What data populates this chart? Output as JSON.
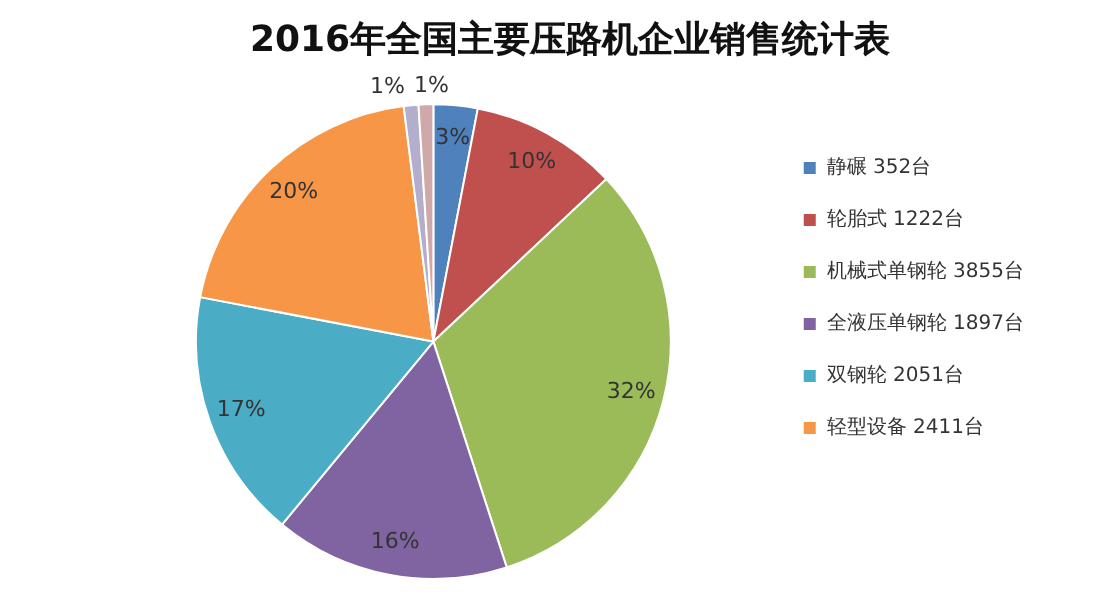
{
  "chart_data": {
    "type": "pie",
    "title": "2016年全国主要压路机企业销售统计表",
    "categories": [
      "静碾 352台",
      "轮胎式 1222台",
      "机械式单钢轮 3855台",
      "全液压单钢轮 1897台",
      "双钢轮 2051台",
      "轻型设备 2411台",
      null,
      null
    ],
    "values": [
      3,
      10,
      32,
      16,
      17,
      20,
      1,
      1
    ],
    "value_labels": [
      "3%",
      "10%",
      "32%",
      "16%",
      "17%",
      "20%",
      "1%",
      "1%"
    ],
    "colors": [
      "#4f81bd",
      "#c0504d",
      "#9bbb59",
      "#8064a2",
      "#4bacc6",
      "#f79646",
      "#b3aecb",
      "#cfa9a9"
    ],
    "legend": "right"
  }
}
